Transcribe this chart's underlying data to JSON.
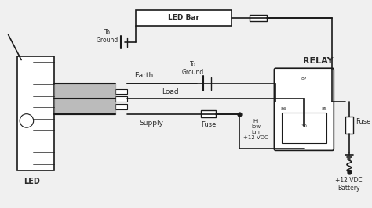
{
  "bg_color": "#f0f0f0",
  "line_color": "#1a1a1a",
  "text_color": "#2a2a2a",
  "relay_label": "RELAY",
  "led_bar_label": "LED Bar",
  "led_label": "LED",
  "earth_label": "Earth",
  "load_label": "Load",
  "supply_label": "Supply",
  "fuse_label1": "Fuse",
  "fuse_label2": "Fuse",
  "to_ground1": "To\nGround",
  "to_ground2": "To\nGround",
  "hi_low_ign": "Hi\nlow\nign\n+12 VDC",
  "battery_label": "+12 VDC\nBattery",
  "relay_pins": [
    "87",
    "86",
    "85",
    "30"
  ],
  "figsize": [
    4.74,
    2.66
  ],
  "dpi": 100
}
